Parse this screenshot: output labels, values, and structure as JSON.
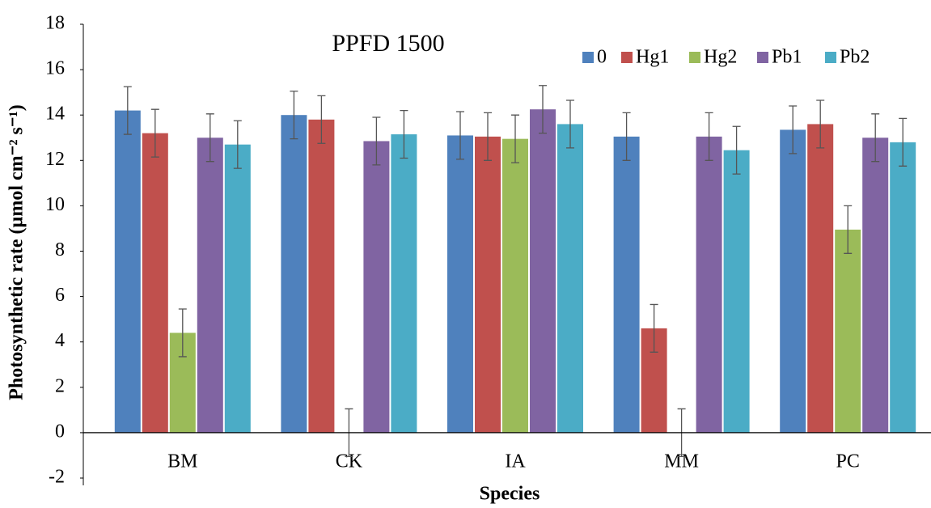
{
  "chart_data": {
    "type": "bar",
    "title": "PPFD 1500",
    "x_label": "Species",
    "y_label": "Photosynthetic rate (µmol cm⁻² s⁻¹)",
    "categories": [
      "BM",
      "CK",
      "IA",
      "MM",
      "PC"
    ],
    "series": [
      {
        "name": "0",
        "color": "#4f81bd",
        "values": [
          14.2,
          14.0,
          13.1,
          13.05,
          13.35
        ],
        "errors": [
          1.05,
          1.05,
          1.05,
          1.05,
          1.05
        ]
      },
      {
        "name": "Hg1",
        "color": "#c0504d",
        "values": [
          13.2,
          13.8,
          13.05,
          4.6,
          13.6
        ],
        "errors": [
          1.05,
          1.05,
          1.05,
          1.05,
          1.05
        ]
      },
      {
        "name": "Hg2",
        "color": "#9bbb59",
        "values": [
          4.4,
          0,
          12.95,
          0,
          8.95
        ],
        "errors": [
          1.05,
          1.05,
          1.05,
          1.05,
          1.05
        ]
      },
      {
        "name": "Pb1",
        "color": "#8064a2",
        "values": [
          13.0,
          12.85,
          14.25,
          13.05,
          13.0
        ],
        "errors": [
          1.05,
          1.05,
          1.05,
          1.05,
          1.05
        ]
      },
      {
        "name": "Pb2",
        "color": "#4bacc6",
        "values": [
          12.7,
          13.15,
          13.6,
          12.45,
          12.8
        ],
        "errors": [
          1.05,
          1.05,
          1.05,
          1.05,
          1.05
        ]
      }
    ],
    "ylim": [
      -2,
      18
    ],
    "yticks": [
      -2,
      0,
      2,
      4,
      6,
      8,
      10,
      12,
      14,
      16,
      18
    ],
    "legend": "top-right"
  }
}
